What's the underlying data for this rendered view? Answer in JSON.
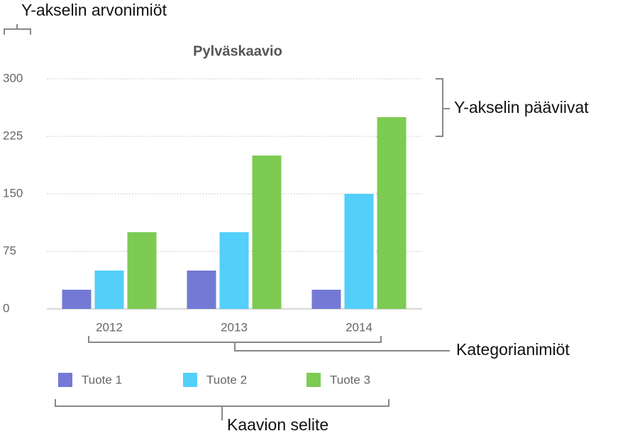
{
  "chart_data": {
    "type": "bar",
    "title": "Pylväskaavio",
    "categories": [
      "2012",
      "2013",
      "2014"
    ],
    "series": [
      {
        "name": "Tuote 1",
        "color": "#7479d6",
        "values": [
          25,
          50,
          25
        ]
      },
      {
        "name": "Tuote 2",
        "color": "#53cffa",
        "values": [
          50,
          100,
          150
        ]
      },
      {
        "name": "Tuote 3",
        "color": "#7dcb53",
        "values": [
          100,
          200,
          250
        ]
      }
    ],
    "ylim": [
      0,
      300
    ],
    "yticks": [
      0,
      75,
      150,
      225,
      300
    ],
    "grid": true,
    "legend": "bottom",
    "annotations": [
      "Y-akselin arvonimiöt",
      "Y-akselin pääviivat",
      "Kategorianimiöt",
      "Kaavion selite"
    ]
  }
}
